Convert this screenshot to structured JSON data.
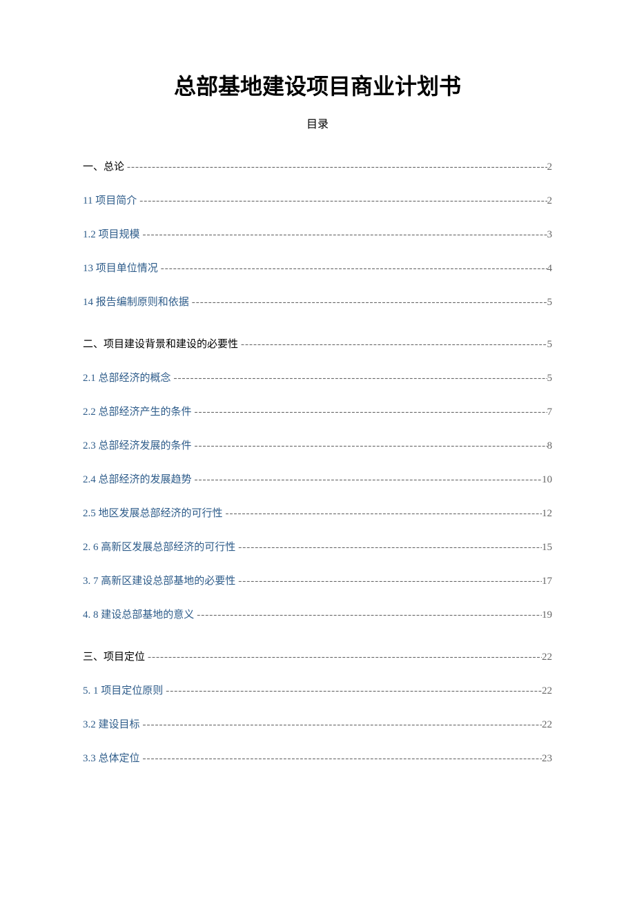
{
  "document": {
    "title": "总部基地建设项目商业计划书",
    "subtitle": "目录"
  },
  "colors": {
    "heading_black": "#000000",
    "entry_blue": "#2e5c8a",
    "leader_gray": "#666666",
    "background": "#ffffff"
  },
  "typography": {
    "title_fontsize": 32,
    "title_weight": "bold",
    "subtitle_fontsize": 16,
    "entry_fontsize": 15
  },
  "toc": [
    {
      "label": "一、总论",
      "page": "2",
      "color": "black",
      "gap_before": false
    },
    {
      "label": "11 项目简介",
      "page": "2",
      "color": "blue",
      "gap_before": false
    },
    {
      "label": "1.2 项目规模",
      "page": "3",
      "color": "blue",
      "gap_before": false
    },
    {
      "label": "13 项目单位情况",
      "page": "4",
      "color": "blue",
      "gap_before": false
    },
    {
      "label": "14 报告编制原则和依据",
      "page": "5",
      "color": "blue",
      "gap_before": false
    },
    {
      "label": "二、项目建设背景和建设的必要性",
      "page": "5",
      "color": "black",
      "gap_before": true
    },
    {
      "label": "2.1 总部经济的概念",
      "page": "5",
      "color": "blue",
      "gap_before": false
    },
    {
      "label": "2.2 总部经济产生的条件",
      "page": "7",
      "color": "blue",
      "gap_before": false
    },
    {
      "label": "2.3 总部经济发展的条件",
      "page": "8",
      "color": "blue",
      "gap_before": false
    },
    {
      "label": "2.4 总部经济的发展趋势",
      "page": "10",
      "color": "blue",
      "gap_before": false
    },
    {
      "label": "2.5 地区发展总部经济的可行性",
      "page": "12",
      "color": "blue",
      "gap_before": false
    },
    {
      "label": "2.   6 高新区发展总部经济的可行性",
      "page": "15",
      "color": "blue",
      "gap_before": false
    },
    {
      "label": "3.   7 高新区建设总部基地的必要性",
      "page": "17",
      "color": "blue",
      "gap_before": false
    },
    {
      "label": "4.   8 建设总部基地的意义",
      "page": "19",
      "color": "blue",
      "gap_before": false
    },
    {
      "label": "三、项目定位",
      "page": "22",
      "color": "black",
      "gap_before": true
    },
    {
      "label": "5.   1 项目定位原则",
      "page": "22",
      "color": "blue",
      "gap_before": false
    },
    {
      "label": "3.2 建设目标",
      "page": "22",
      "color": "blue",
      "gap_before": false
    },
    {
      "label": "3.3 总体定位",
      "page": "23",
      "color": "blue",
      "gap_before": false
    }
  ]
}
